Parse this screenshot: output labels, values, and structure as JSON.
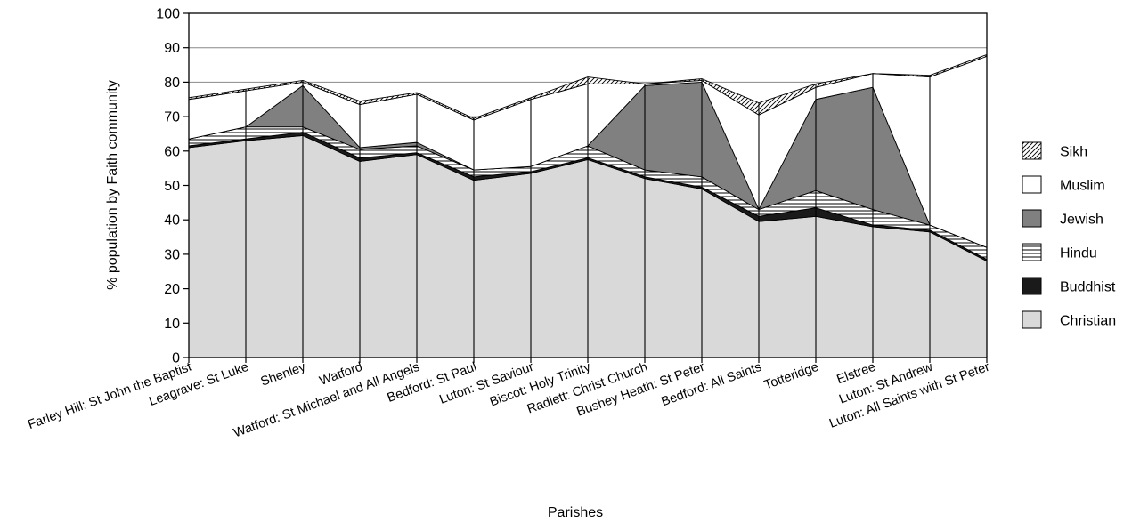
{
  "chart_data": {
    "type": "area",
    "title": "",
    "xlabel": "Parishes",
    "ylabel": "% population by Faith community",
    "ylim": [
      0,
      100
    ],
    "yticks": [
      0,
      10,
      20,
      30,
      40,
      50,
      60,
      70,
      80,
      90,
      100
    ],
    "grid": "horizontal",
    "stacked": true,
    "legend": "right",
    "categories": [
      "Farley Hill: St John the Baptist",
      "Leagrave: St Luke",
      "Shenley",
      "Watford",
      "Watford: St Michael and All Angels",
      "Bedford: St Paul",
      "Luton: St Saviour",
      "Biscot: Holy Trinity",
      "Radlett: Christ Church",
      "Bushey Heath: St Peter",
      "Bedford: All Saints",
      "Totteridge",
      "Elstree",
      "Luton: St Andrew",
      "Luton: All Saints with St Peter"
    ],
    "series": [
      {
        "name": "Christian",
        "fill": "#d9d9d9",
        "values": [
          61,
          63,
          64.5,
          57,
          59,
          51.5,
          53.5,
          57.5,
          52,
          49,
          39.5,
          41,
          38,
          36.5,
          28
        ]
      },
      {
        "name": "Buddhist",
        "fill": "#1a1a1a",
        "values": [
          0.5,
          0.5,
          1,
          1,
          0.5,
          1,
          0.5,
          0.5,
          0.5,
          0.5,
          1.5,
          2.5,
          0.5,
          0.5,
          0.5
        ]
      },
      {
        "name": "Hindu",
        "fill": "hatch-horizontal",
        "values": [
          2,
          3.5,
          1.5,
          2.5,
          2,
          2,
          1.5,
          3.5,
          2,
          3,
          2,
          5,
          4.5,
          1.5,
          3.5
        ]
      },
      {
        "name": "Jewish",
        "fill": "#808080",
        "values": [
          0,
          0,
          12,
          0.5,
          1,
          0,
          0,
          0,
          24.5,
          27.5,
          0,
          26.5,
          35.5,
          0,
          0
        ]
      },
      {
        "name": "Muslim",
        "fill": "#ffffff",
        "values": [
          11.5,
          10.5,
          1,
          12.5,
          14,
          14.5,
          19.5,
          18,
          0.5,
          0.5,
          27.5,
          3.5,
          4,
          43,
          55.5
        ]
      },
      {
        "name": "Sikh",
        "fill": "hatch-diagonal",
        "values": [
          0.5,
          0.5,
          0.5,
          1,
          0.5,
          0.5,
          0.5,
          2,
          0,
          0.5,
          3.5,
          1,
          0,
          0.5,
          0.5
        ]
      }
    ],
    "legend_order": [
      "Sikh",
      "Muslim",
      "Jewish",
      "Hindu",
      "Buddhist",
      "Christian"
    ]
  }
}
